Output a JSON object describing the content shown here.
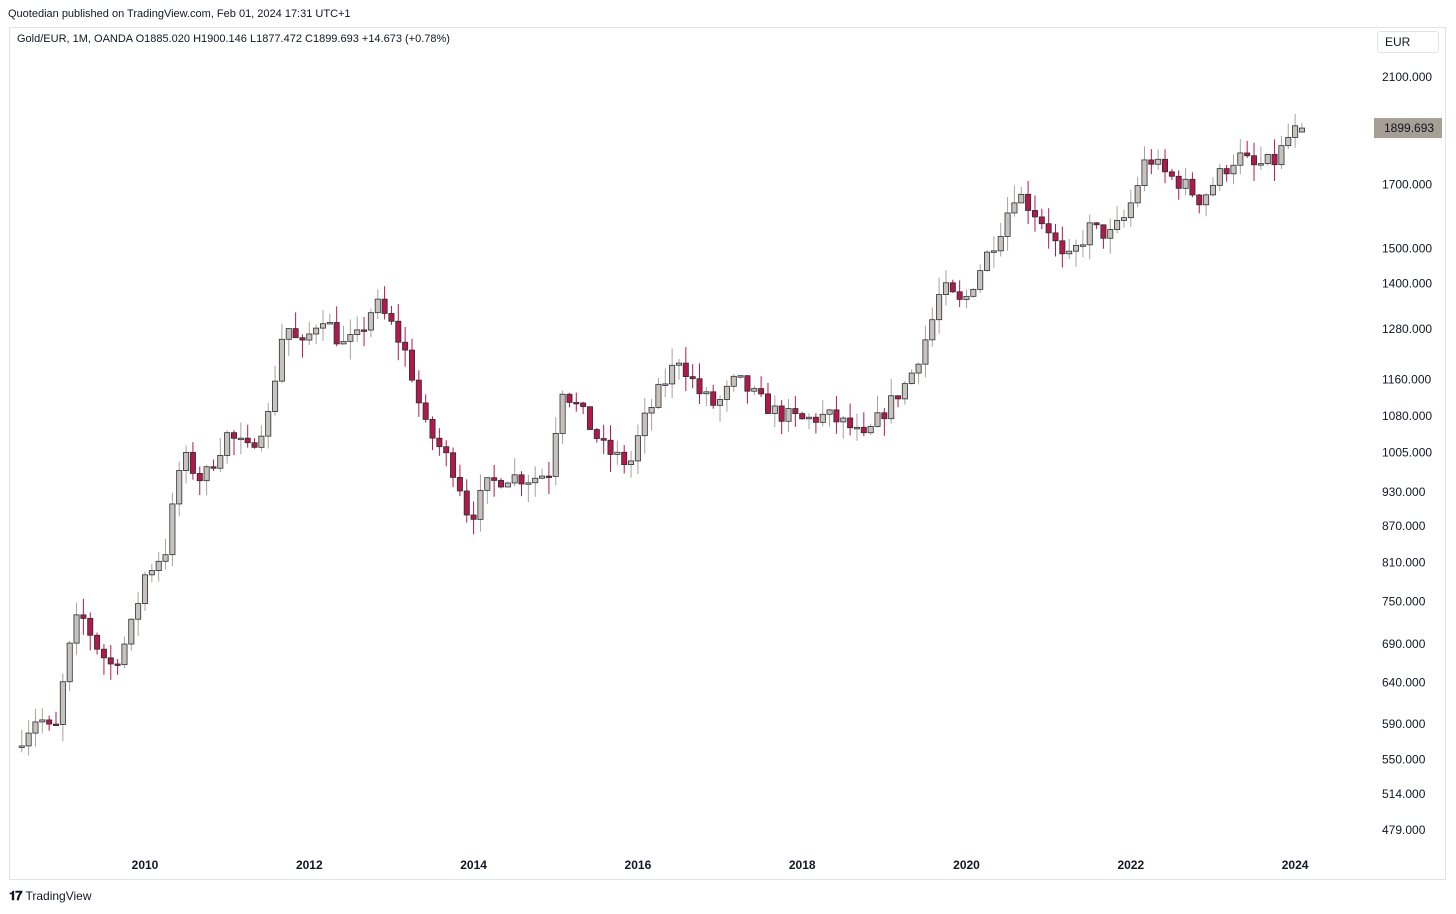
{
  "header": {
    "publisher_line": "Quotedian published on TradingView.com, Feb 01, 2024 17:31 UTC+1",
    "legend": "Gold/EUR, 1M, OANDA  O1885.020  H1900.146  L1877.472  C1899.693  +14.673 (+0.78%)",
    "currency": "EUR"
  },
  "footer": {
    "logo": "𝟏𝟕",
    "brand": "TradingView"
  },
  "colors": {
    "up": "#c8c2ba",
    "down": "#b11a48",
    "outline": "#2a2e39",
    "price_tag": "#a79e96"
  },
  "chart_data": {
    "type": "candlestick",
    "symbol": "Gold/EUR",
    "interval": "1M",
    "exchange": "OANDA",
    "scale": "log",
    "ylim": [
      448,
      2240
    ],
    "y_ticks": [
      "2100.000",
      "1700.000",
      "1500.000",
      "1400.000",
      "1280.000",
      "1160.000",
      "1080.000",
      "1005.000",
      "930.000",
      "870.000",
      "810.000",
      "750.000",
      "690.000",
      "640.000",
      "590.000",
      "550.000",
      "514.000",
      "479.000"
    ],
    "x_ticks": [
      "2010",
      "2012",
      "2014",
      "2016",
      "2018",
      "2020",
      "2022",
      "2024"
    ],
    "last_price_label": "1899.693",
    "last_price": 1899.693,
    "anchors": [
      {
        "t": 2008.5,
        "c": 575
      },
      {
        "t": 2008.7,
        "c": 600
      },
      {
        "t": 2008.9,
        "c": 575
      },
      {
        "t": 2009.05,
        "c": 670
      },
      {
        "t": 2009.2,
        "c": 735
      },
      {
        "t": 2009.45,
        "c": 680
      },
      {
        "t": 2009.6,
        "c": 660
      },
      {
        "t": 2009.8,
        "c": 700
      },
      {
        "t": 2010.0,
        "c": 790
      },
      {
        "t": 2010.25,
        "c": 830
      },
      {
        "t": 2010.45,
        "c": 1000
      },
      {
        "t": 2010.7,
        "c": 950
      },
      {
        "t": 2011.0,
        "c": 1040
      },
      {
        "t": 2011.25,
        "c": 1010
      },
      {
        "t": 2011.5,
        "c": 1080
      },
      {
        "t": 2011.7,
        "c": 1300
      },
      {
        "t": 2011.9,
        "c": 1230
      },
      {
        "t": 2012.15,
        "c": 1320
      },
      {
        "t": 2012.4,
        "c": 1240
      },
      {
        "t": 2012.6,
        "c": 1260
      },
      {
        "t": 2012.8,
        "c": 1350
      },
      {
        "t": 2013.0,
        "c": 1290
      },
      {
        "t": 2013.2,
        "c": 1210
      },
      {
        "t": 2013.4,
        "c": 1060
      },
      {
        "t": 2013.65,
        "c": 1000
      },
      {
        "t": 2013.8,
        "c": 960
      },
      {
        "t": 2013.95,
        "c": 880
      },
      {
        "t": 2014.15,
        "c": 940
      },
      {
        "t": 2014.4,
        "c": 960
      },
      {
        "t": 2014.7,
        "c": 955
      },
      {
        "t": 2014.95,
        "c": 970
      },
      {
        "t": 2015.05,
        "c": 1150
      },
      {
        "t": 2015.3,
        "c": 1090
      },
      {
        "t": 2015.6,
        "c": 1010
      },
      {
        "t": 2015.9,
        "c": 980
      },
      {
        "t": 2016.05,
        "c": 1060
      },
      {
        "t": 2016.25,
        "c": 1130
      },
      {
        "t": 2016.5,
        "c": 1210
      },
      {
        "t": 2016.75,
        "c": 1130
      },
      {
        "t": 2016.95,
        "c": 1100
      },
      {
        "t": 2017.2,
        "c": 1160
      },
      {
        "t": 2017.5,
        "c": 1110
      },
      {
        "t": 2017.7,
        "c": 1085
      },
      {
        "t": 2018.0,
        "c": 1070
      },
      {
        "t": 2018.3,
        "c": 1080
      },
      {
        "t": 2018.55,
        "c": 1060
      },
      {
        "t": 2018.75,
        "c": 1030
      },
      {
        "t": 2019.0,
        "c": 1090
      },
      {
        "t": 2019.3,
        "c": 1160
      },
      {
        "t": 2019.55,
        "c": 1280
      },
      {
        "t": 2019.7,
        "c": 1390
      },
      {
        "t": 2019.95,
        "c": 1340
      },
      {
        "t": 2020.2,
        "c": 1460
      },
      {
        "t": 2020.4,
        "c": 1550
      },
      {
        "t": 2020.6,
        "c": 1680
      },
      {
        "t": 2020.8,
        "c": 1620
      },
      {
        "t": 2021.0,
        "c": 1560
      },
      {
        "t": 2021.2,
        "c": 1450
      },
      {
        "t": 2021.5,
        "c": 1560
      },
      {
        "t": 2021.75,
        "c": 1540
      },
      {
        "t": 2021.95,
        "c": 1600
      },
      {
        "t": 2022.2,
        "c": 1800
      },
      {
        "t": 2022.4,
        "c": 1740
      },
      {
        "t": 2022.65,
        "c": 1700
      },
      {
        "t": 2022.85,
        "c": 1650
      },
      {
        "t": 2023.1,
        "c": 1740
      },
      {
        "t": 2023.3,
        "c": 1800
      },
      {
        "t": 2023.5,
        "c": 1760
      },
      {
        "t": 2023.75,
        "c": 1780
      },
      {
        "t": 2023.95,
        "c": 1880
      },
      {
        "t": 2024.08,
        "c": 1899.693
      }
    ]
  }
}
